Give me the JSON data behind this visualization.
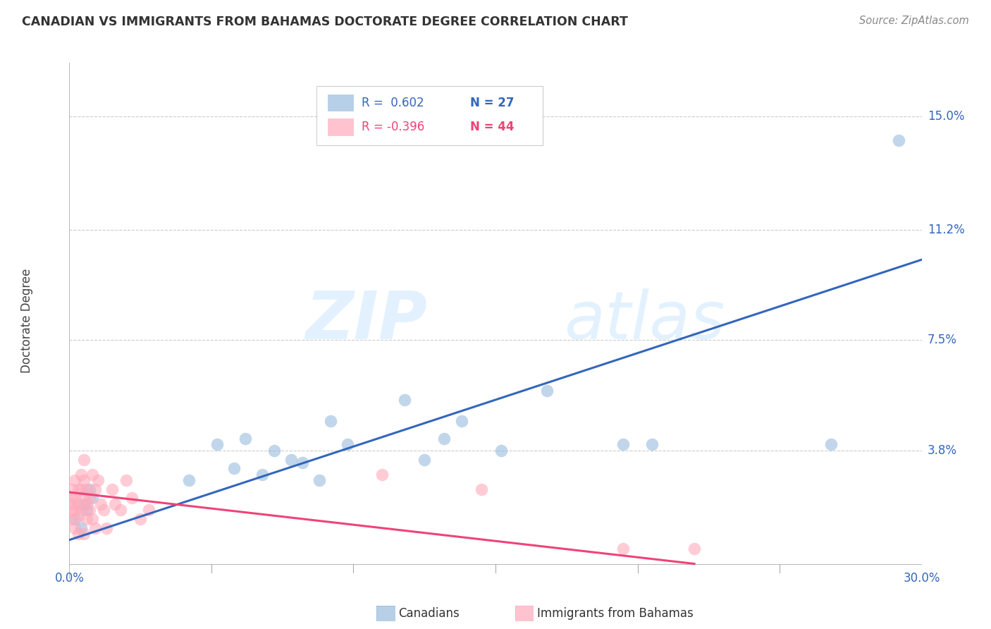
{
  "title": "CANADIAN VS IMMIGRANTS FROM BAHAMAS DOCTORATE DEGREE CORRELATION CHART",
  "source": "Source: ZipAtlas.com",
  "ylabel": "Doctorate Degree",
  "ytick_labels": [
    "3.8%",
    "7.5%",
    "11.2%",
    "15.0%"
  ],
  "ytick_values": [
    0.038,
    0.075,
    0.112,
    0.15
  ],
  "xlim": [
    0.0,
    0.3
  ],
  "ylim": [
    -0.005,
    0.168
  ],
  "watermark_zip": "ZIP",
  "watermark_atlas": "atlas",
  "legend_blue_r": "R =  0.602",
  "legend_blue_n": "N = 27",
  "legend_pink_r": "R = -0.396",
  "legend_pink_n": "N = 44",
  "blue_scatter_color": "#99BBDD",
  "pink_scatter_color": "#FFAABB",
  "blue_line_color": "#3366BB",
  "pink_line_color": "#EE4477",
  "text_blue_color": "#3366BB",
  "text_pink_color": "#EE4477",
  "background_color": "#FFFFFF",
  "grid_color": "#CCCCCC",
  "canadians_x": [
    0.002,
    0.004,
    0.005,
    0.006,
    0.007,
    0.008,
    0.042,
    0.052,
    0.058,
    0.062,
    0.068,
    0.072,
    0.078,
    0.082,
    0.088,
    0.092,
    0.098,
    0.118,
    0.125,
    0.132,
    0.138,
    0.152,
    0.168,
    0.195,
    0.205,
    0.268,
    0.292
  ],
  "canadians_y": [
    0.015,
    0.012,
    0.02,
    0.018,
    0.025,
    0.022,
    0.028,
    0.04,
    0.032,
    0.042,
    0.03,
    0.038,
    0.035,
    0.034,
    0.028,
    0.048,
    0.04,
    0.055,
    0.035,
    0.042,
    0.048,
    0.038,
    0.058,
    0.04,
    0.04,
    0.04,
    0.142
  ],
  "bahamas_x": [
    0.001,
    0.001,
    0.001,
    0.001,
    0.001,
    0.002,
    0.002,
    0.002,
    0.002,
    0.003,
    0.003,
    0.003,
    0.003,
    0.004,
    0.004,
    0.004,
    0.005,
    0.005,
    0.005,
    0.005,
    0.006,
    0.006,
    0.006,
    0.007,
    0.007,
    0.008,
    0.008,
    0.009,
    0.009,
    0.01,
    0.011,
    0.012,
    0.013,
    0.015,
    0.016,
    0.018,
    0.02,
    0.022,
    0.025,
    0.028,
    0.11,
    0.145,
    0.195,
    0.22
  ],
  "bahamas_y": [
    0.02,
    0.025,
    0.022,
    0.018,
    0.015,
    0.028,
    0.022,
    0.018,
    0.012,
    0.025,
    0.02,
    0.016,
    0.01,
    0.03,
    0.025,
    0.018,
    0.035,
    0.028,
    0.022,
    0.01,
    0.025,
    0.02,
    0.015,
    0.022,
    0.018,
    0.03,
    0.015,
    0.025,
    0.012,
    0.028,
    0.02,
    0.018,
    0.012,
    0.025,
    0.02,
    0.018,
    0.028,
    0.022,
    0.015,
    0.018,
    0.03,
    0.025,
    0.005,
    0.005
  ],
  "blue_trendline_x": [
    0.0,
    0.3
  ],
  "blue_trendline_y": [
    0.008,
    0.102
  ],
  "pink_trendline_x": [
    0.0,
    0.22
  ],
  "pink_trendline_y": [
    0.024,
    0.0
  ]
}
